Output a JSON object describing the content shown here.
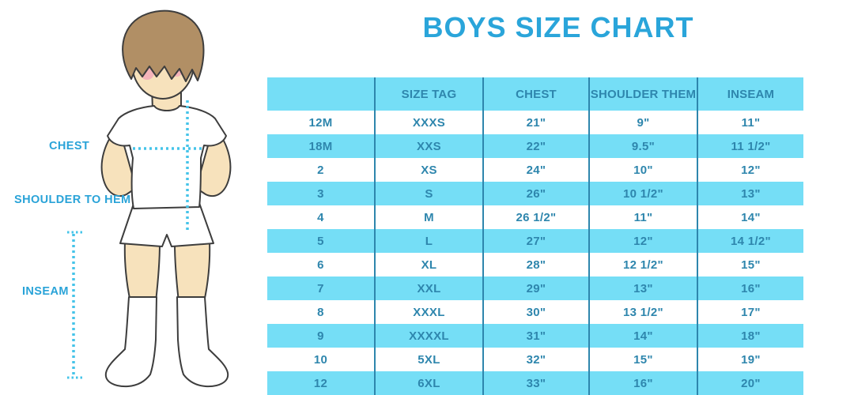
{
  "title": "BOYS SIZE CHART",
  "figure_labels": {
    "chest": "CHEST",
    "shoulder_to_hem": "SHOULDER TO HEM",
    "inseam": "INSEAM"
  },
  "colors": {
    "title_blue": "#2aa5da",
    "label_blue": "#29a3d8",
    "table_fill_blue": "#75def6",
    "table_text_blue": "#2e86ad",
    "dotted_line_cyan": "#45c4e9",
    "skin": "#f7e2bc",
    "hair_brown": "#b18f65",
    "cheek_pink": "#f4abba"
  },
  "chart_data": {
    "type": "table",
    "title": "BOYS SIZE CHART",
    "columns": [
      "",
      "SIZE TAG",
      "CHEST",
      "SHOULDER THEM",
      "INSEAM"
    ],
    "rows": [
      [
        "12M",
        "XXXS",
        "21\"",
        "9\"",
        "11\""
      ],
      [
        "18M",
        "XXS",
        "22\"",
        "9.5\"",
        "11 1/2\""
      ],
      [
        "2",
        "XS",
        "24\"",
        "10\"",
        "12\""
      ],
      [
        "3",
        "S",
        "26\"",
        "10 1/2\"",
        "13\""
      ],
      [
        "4",
        "M",
        "26 1/2\"",
        "11\"",
        "14\""
      ],
      [
        "5",
        "L",
        "27\"",
        "12\"",
        "14 1/2\""
      ],
      [
        "6",
        "XL",
        "28\"",
        "12 1/2\"",
        "15\""
      ],
      [
        "7",
        "XXL",
        "29\"",
        "13\"",
        "16\""
      ],
      [
        "8",
        "XXXL",
        "30\"",
        "13 1/2\"",
        "17\""
      ],
      [
        "9",
        "XXXXL",
        "31\"",
        "14\"",
        "18\""
      ],
      [
        "10",
        "5XL",
        "32\"",
        "15\"",
        "19\""
      ],
      [
        "12",
        "6XL",
        "33\"",
        "16\"",
        "20\""
      ]
    ],
    "row_striping": "alternating white and light blue, starting white",
    "legend_position": "none",
    "grid": "vertical separators only"
  }
}
